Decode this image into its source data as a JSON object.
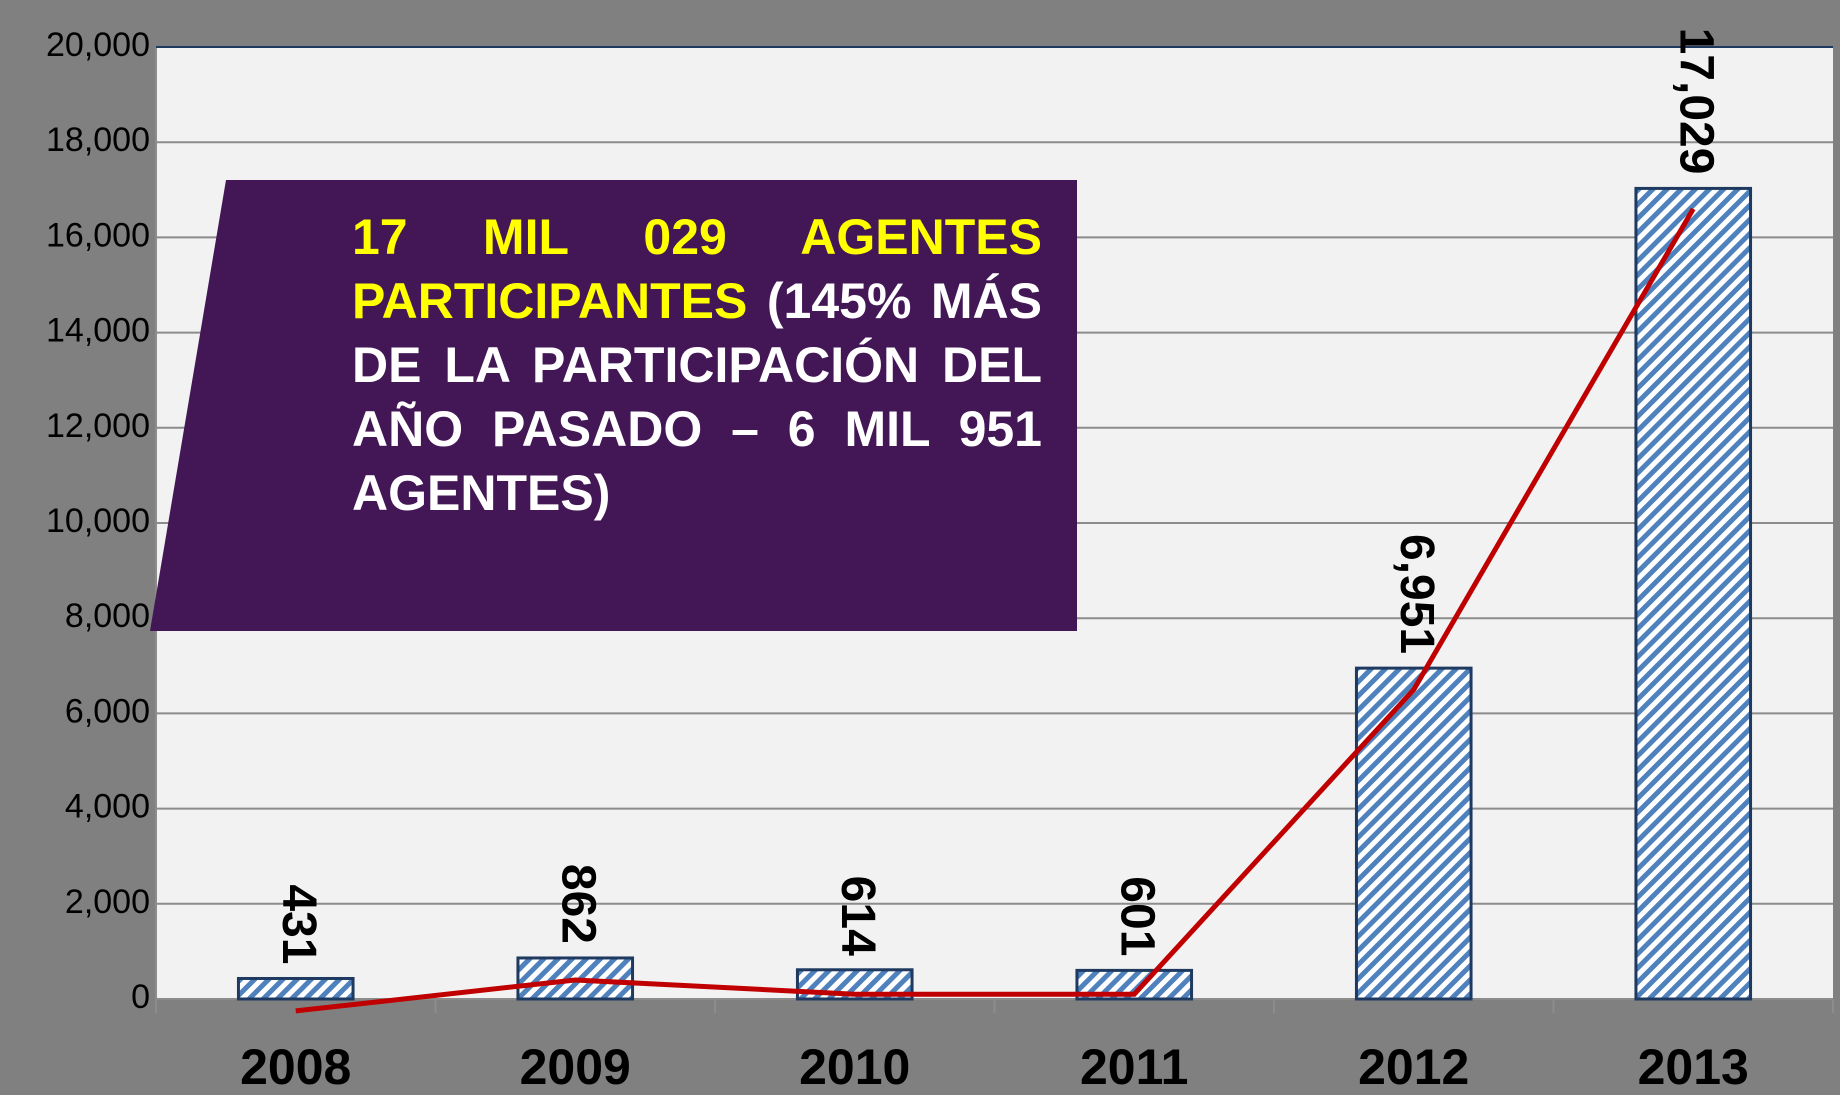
{
  "chart_data": {
    "type": "bar",
    "categories": [
      "2008",
      "2009",
      "2010",
      "2011",
      "2012",
      "2013"
    ],
    "values": [
      431,
      862,
      614,
      601,
      6951,
      17029
    ],
    "value_labels": [
      "431",
      "862",
      "614",
      "601",
      "6,951",
      "17,029"
    ],
    "color": "#4f81bd",
    "edge_color": "#1f3a60",
    "ylim": [
      0,
      20000
    ],
    "yticks": [
      0,
      {
        "value": 2000,
        "label": "2,000"
      },
      {
        "value": 4000,
        "label": "4,000"
      },
      {
        "value": 6000,
        "label": "6,000"
      },
      {
        "value": 8000,
        "label": "8,000"
      },
      {
        "value": 10000,
        "label": "10,000"
      },
      {
        "value": 12000,
        "label": "12,000"
      },
      {
        "value": 14000,
        "label": "14,000"
      },
      {
        "value": 16000,
        "label": "16,000"
      },
      {
        "value": 18000,
        "label": "18,000"
      },
      {
        "value": 20000,
        "label": "20,000"
      }
    ],
    "grid": true,
    "trend_line": {
      "color": "#c00000",
      "values": [
        -250,
        400,
        100,
        100,
        6500,
        16600
      ]
    },
    "annotation_highlight": "17 MIL 029 AGENTES PARTICIPANTES",
    "annotation_rest": "(145% MÁS DE LA PARTICIPACIÓN DEL AÑO PASADO – 6 MIL 951 AGENTES)"
  }
}
